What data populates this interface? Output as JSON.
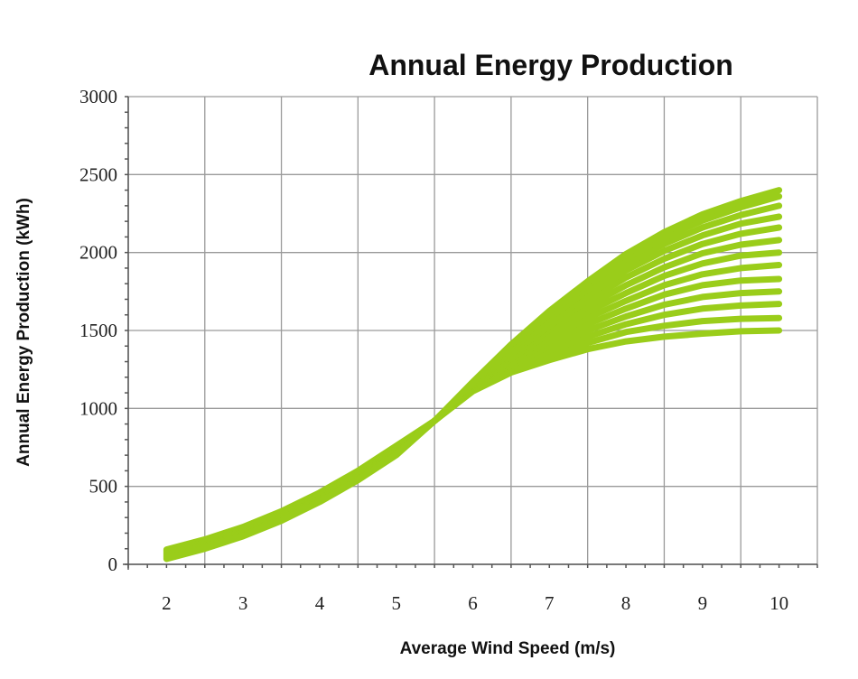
{
  "chart_data": {
    "type": "line",
    "title": "Annual Energy Production",
    "xlabel": "Average Wind Speed (m/s)",
    "ylabel": "Annual Energy Production (kWh)",
    "xlim": [
      1.5,
      10.5
    ],
    "ylim": [
      0,
      3000
    ],
    "xticks": [
      2,
      3,
      4,
      5,
      6,
      7,
      8,
      9,
      10
    ],
    "yticks": [
      0,
      500,
      1000,
      1500,
      2000,
      2500,
      3000
    ],
    "grid": true,
    "color": "#9acd1a",
    "x": [
      2,
      2.5,
      3,
      3.5,
      4,
      4.5,
      5,
      5.5,
      6,
      6.5,
      7,
      7.5,
      8,
      8.5,
      9,
      9.5,
      10
    ],
    "series": [
      {
        "values": [
          95,
          160,
          240,
          340,
          460,
          600,
          760,
          920,
          1110,
          1230,
          1310,
          1380,
          1430,
          1460,
          1480,
          1495,
          1500
        ]
      },
      {
        "values": [
          90,
          155,
          235,
          335,
          455,
          595,
          755,
          920,
          1115,
          1245,
          1340,
          1420,
          1490,
          1530,
          1560,
          1575,
          1580
        ]
      },
      {
        "values": [
          85,
          150,
          230,
          330,
          450,
          590,
          750,
          920,
          1120,
          1260,
          1370,
          1460,
          1540,
          1600,
          1640,
          1660,
          1670
        ]
      },
      {
        "values": [
          80,
          145,
          225,
          325,
          445,
          585,
          745,
          920,
          1125,
          1275,
          1400,
          1500,
          1590,
          1665,
          1715,
          1740,
          1750
        ]
      },
      {
        "values": [
          75,
          140,
          220,
          320,
          440,
          580,
          740,
          920,
          1130,
          1290,
          1430,
          1540,
          1640,
          1730,
          1790,
          1820,
          1830
        ]
      },
      {
        "values": [
          70,
          135,
          215,
          315,
          435,
          575,
          735,
          920,
          1135,
          1305,
          1455,
          1580,
          1690,
          1790,
          1860,
          1900,
          1920
        ]
      },
      {
        "values": [
          65,
          130,
          210,
          310,
          430,
          570,
          730,
          920,
          1140,
          1320,
          1480,
          1620,
          1740,
          1850,
          1930,
          1980,
          2000
        ]
      },
      {
        "values": [
          60,
          125,
          205,
          305,
          425,
          565,
          725,
          920,
          1145,
          1335,
          1505,
          1655,
          1790,
          1905,
          1995,
          2050,
          2080
        ]
      },
      {
        "values": [
          55,
          120,
          200,
          300,
          420,
          560,
          720,
          920,
          1150,
          1350,
          1530,
          1690,
          1840,
          1960,
          2055,
          2120,
          2160
        ]
      },
      {
        "values": [
          50,
          115,
          195,
          295,
          415,
          555,
          715,
          920,
          1155,
          1365,
          1555,
          1725,
          1885,
          2010,
          2110,
          2185,
          2230
        ]
      },
      {
        "values": [
          45,
          110,
          190,
          290,
          410,
          550,
          710,
          920,
          1160,
          1380,
          1580,
          1760,
          1925,
          2055,
          2160,
          2240,
          2300
        ]
      },
      {
        "values": [
          40,
          105,
          185,
          285,
          405,
          545,
          705,
          920,
          1165,
          1395,
          1605,
          1790,
          1960,
          2095,
          2205,
          2290,
          2360
        ]
      },
      {
        "values": [
          35,
          100,
          180,
          280,
          400,
          540,
          700,
          920,
          1170,
          1410,
          1625,
          1815,
          1990,
          2130,
          2245,
          2330,
          2400
        ]
      }
    ]
  }
}
